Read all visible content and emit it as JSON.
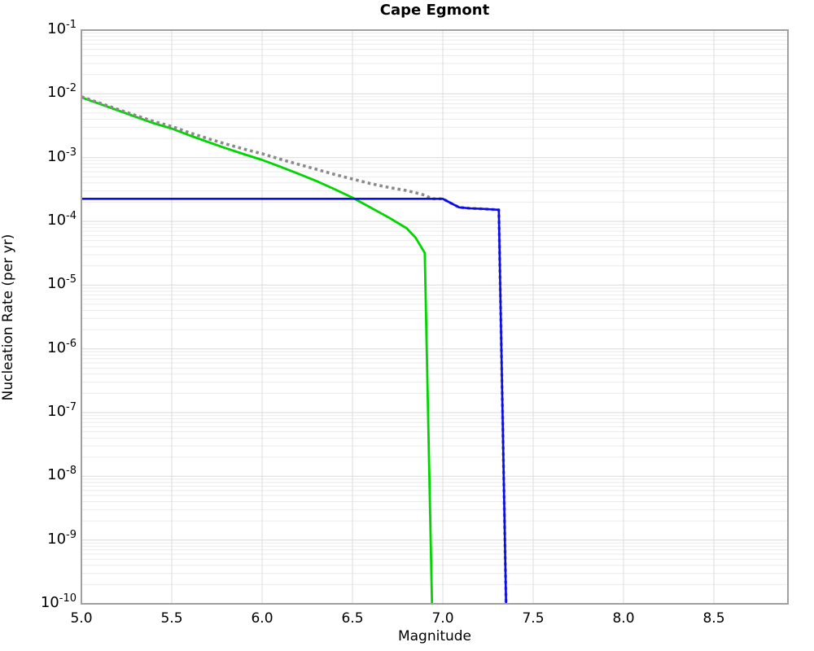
{
  "title": "Cape Egmont",
  "colors": {
    "background": "#ffffff",
    "frame": "#a0a0a0",
    "grid_major": "#d9d9d9",
    "grid_minor": "#ebebeb",
    "grid_vertical": "#dcdcdc",
    "text": "#000000"
  },
  "chart_data": {
    "type": "line",
    "title": "Cape Egmont",
    "xlabel": "Magnitude",
    "ylabel": "Nucleation Rate (per yr)",
    "xlim": [
      5.0,
      8.91
    ],
    "ylim": [
      1e-10,
      0.1
    ],
    "y_scale": "log",
    "grid": "on (log minor horizontal lines, vertical lines every 0.5 magnitude)",
    "legend": "none",
    "x_ticks": [
      "5.0",
      "5.5",
      "6.0",
      "6.5",
      "7.0",
      "7.5",
      "8.0",
      "8.5"
    ],
    "x_tick_values": [
      5.0,
      5.5,
      6.0,
      6.5,
      7.0,
      7.5,
      8.0,
      8.5
    ],
    "x_gridline_values": [
      5.5,
      6.0,
      6.5,
      7.0,
      7.5,
      8.0,
      8.5
    ],
    "y_tick_base": "10",
    "y_tick_exponents": [
      -1,
      -2,
      -3,
      -4,
      -5,
      -6,
      -7,
      -8,
      -9,
      -10
    ],
    "series": [
      {
        "name": "green-solid-curve",
        "color": "#00d500",
        "style": "solid",
        "width": 2.8,
        "points": [
          [
            5.0,
            0.0088
          ],
          [
            5.1,
            0.00697
          ],
          [
            5.2,
            0.00552
          ],
          [
            5.3,
            0.00437
          ],
          [
            5.4,
            0.00346
          ],
          [
            5.5,
            0.00285
          ],
          [
            5.6,
            0.00222
          ],
          [
            5.7,
            0.00176
          ],
          [
            5.8,
            0.0014
          ],
          [
            5.9,
            0.00113
          ],
          [
            6.0,
            0.00092
          ],
          [
            6.1,
            0.00072
          ],
          [
            6.2,
            0.00056
          ],
          [
            6.3,
            0.00043
          ],
          [
            6.4,
            0.00032
          ],
          [
            6.5,
            0.000235
          ],
          [
            6.6,
            0.000165
          ],
          [
            6.7,
            0.000115
          ],
          [
            6.8,
            7.8e-05
          ],
          [
            6.85,
            5.5e-05
          ],
          [
            6.9,
            3.2e-05
          ],
          [
            6.94,
            1e-10
          ]
        ]
      },
      {
        "name": "gray-dotted-total-curve",
        "color": "#8a8a8a",
        "style": "dotted",
        "width": 3.6,
        "points": [
          [
            5.0,
            0.00903
          ],
          [
            5.1,
            0.0072
          ],
          [
            5.2,
            0.00575
          ],
          [
            5.3,
            0.0046
          ],
          [
            5.4,
            0.00369
          ],
          [
            5.5,
            0.00308
          ],
          [
            5.6,
            0.00245
          ],
          [
            5.7,
            0.00199
          ],
          [
            5.8,
            0.00163
          ],
          [
            5.9,
            0.00136
          ],
          [
            6.0,
            0.00115
          ],
          [
            6.1,
            0.000946
          ],
          [
            6.2,
            0.000786
          ],
          [
            6.3,
            0.000656
          ],
          [
            6.4,
            0.000546
          ],
          [
            6.5,
            0.000461
          ],
          [
            6.6,
            0.000391
          ],
          [
            6.7,
            0.000341
          ],
          [
            6.8,
            0.000304
          ],
          [
            6.85,
            0.000281
          ],
          [
            6.9,
            0.000258
          ],
          [
            6.94,
            0.000226
          ],
          [
            7.0,
            0.000226
          ],
          [
            7.05,
            0.00019
          ],
          [
            7.09,
            0.000166
          ],
          [
            7.15,
            0.00016
          ],
          [
            7.22,
            0.000157
          ],
          [
            7.31,
            0.000152
          ],
          [
            7.35,
            1e-10
          ]
        ]
      },
      {
        "name": "blue-solid-curve",
        "color": "#0a0aee",
        "style": "solid",
        "width": 2.6,
        "points": [
          [
            5.0,
            0.000226
          ],
          [
            7.0,
            0.000226
          ],
          [
            7.05,
            0.00019
          ],
          [
            7.09,
            0.000166
          ],
          [
            7.15,
            0.00016
          ],
          [
            7.22,
            0.000157
          ],
          [
            7.31,
            0.000152
          ],
          [
            7.35,
            1e-10
          ]
        ]
      }
    ]
  }
}
